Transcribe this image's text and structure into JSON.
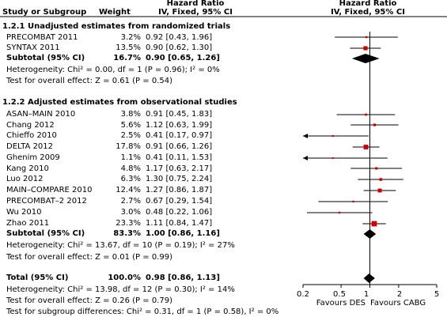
{
  "header": {
    "col_study": "Study or Subgroup",
    "col_weight": "Weight",
    "col_effect_title": "Hazard Ratio",
    "col_effect_sub": "IV, Fixed, 95% CI",
    "plot_title": "Hazard Ratio",
    "plot_sub": "IV, Fixed, 95% CI"
  },
  "groups": [
    {
      "title": "1.2.1 Unadjusted estimates from randomized trials",
      "studies": [
        {
          "name": "PRECOMBAT 2011",
          "weight": "3.2%",
          "ci_text": "0.92 [0.43, 1.96]"
        },
        {
          "name": "SYNTAX 2011",
          "weight": "13.5%",
          "ci_text": "0.90 [0.62, 1.30]"
        }
      ],
      "subtotal": {
        "name": "Subtotal (95% CI)",
        "weight": "16.7%",
        "ci_text": "0.90 [0.65, 1.26]"
      },
      "heterogeneity": "Heterogeneity: Chi² = 0.00, df = 1 (P = 0.96); I² = 0%",
      "overall": "Test for overall effect: Z = 0.61 (P = 0.54)"
    },
    {
      "title": "1.2.2 Adjusted estimates from observational studies",
      "studies": [
        {
          "name": "ASAN–MAIN 2010",
          "weight": "3.8%",
          "ci_text": "0.91 [0.45, 1.83]"
        },
        {
          "name": "Chang 2012",
          "weight": "5.6%",
          "ci_text": "1.12 [0.63, 1.99]"
        },
        {
          "name": "Chieffo 2010",
          "weight": "2.5%",
          "ci_text": "0.41 [0.17, 0.97]"
        },
        {
          "name": "DELTA 2012",
          "weight": "17.8%",
          "ci_text": "0.91 [0.66, 1.26]"
        },
        {
          "name": "Ghenim 2009",
          "weight": "1.1%",
          "ci_text": "0.41 [0.11, 1.53]"
        },
        {
          "name": "Kang 2010",
          "weight": "4.8%",
          "ci_text": "1.17 [0.63, 2.17]"
        },
        {
          "name": "Luo 2012",
          "weight": "6.3%",
          "ci_text": "1.30 [0.75, 2.24]"
        },
        {
          "name": "MAIN–COMPARE 2010",
          "weight": "12.4%",
          "ci_text": "1.27 [0.86, 1.87]"
        },
        {
          "name": "PRECOMBAT–2 2012",
          "weight": "2.7%",
          "ci_text": "0.67 [0.29, 1.54]"
        },
        {
          "name": "Wu 2010",
          "weight": "3.0%",
          "ci_text": "0.48 [0.22, 1.06]"
        },
        {
          "name": "Zhao 2011",
          "weight": "23.3%",
          "ci_text": "1.11 [0.84, 1.47]"
        }
      ],
      "subtotal": {
        "name": "Subtotal (95% CI)",
        "weight": "83.3%",
        "ci_text": "1.00 [0.86, 1.16]"
      },
      "heterogeneity": "Heterogeneity: Chi² = 13.67, df = 10 (P = 0.19); I² = 27%",
      "overall": "Test for overall effect: Z = 0.01 (P = 0.99)"
    }
  ],
  "total": {
    "name": "Total (95% CI)",
    "weight": "100.0%",
    "ci_text": "0.98 [0.86, 1.13]"
  },
  "total_heterogeneity": "Heterogeneity: Chi² = 13.98, df = 12 (P = 0.30); I² = 14%",
  "total_overall": "Test for overall effect: Z = 0.26 (P = 0.79)",
  "subgroup_diff": "Test for subgroup differences: Chi² = 0.31, df = 1 (P = 0.58), I² = 0%",
  "axis": {
    "ticks": [
      0.2,
      0.5,
      1,
      2,
      5
    ],
    "tick_labels": [
      "0.2",
      "0.5",
      "1",
      "2",
      "5"
    ],
    "favours_left": "Favours DES",
    "favours_right": "Favours CABG"
  },
  "colors": {
    "marker": "#cc0000",
    "diamond": "#000000",
    "line": "#000000"
  },
  "chart_data": {
    "type": "forest",
    "scale": "log",
    "xlim": [
      0.2,
      5
    ],
    "reference_line": 1,
    "rows": [
      {
        "label": "PRECOMBAT 2011",
        "hr": 0.92,
        "lo": 0.43,
        "hi": 1.96,
        "weight": 3.2,
        "kind": "study"
      },
      {
        "label": "SYNTAX 2011",
        "hr": 0.9,
        "lo": 0.62,
        "hi": 1.3,
        "weight": 13.5,
        "kind": "study"
      },
      {
        "label": "Subtotal (95% CI)",
        "hr": 0.9,
        "lo": 0.65,
        "hi": 1.26,
        "weight": 16.7,
        "kind": "diamond"
      },
      {
        "label": "ASAN–MAIN 2010",
        "hr": 0.91,
        "lo": 0.45,
        "hi": 1.83,
        "weight": 3.8,
        "kind": "study"
      },
      {
        "label": "Chang 2012",
        "hr": 1.12,
        "lo": 0.63,
        "hi": 1.99,
        "weight": 5.6,
        "kind": "study"
      },
      {
        "label": "Chieffo 2010",
        "hr": 0.41,
        "lo": 0.17,
        "hi": 0.97,
        "weight": 2.5,
        "kind": "study"
      },
      {
        "label": "DELTA 2012",
        "hr": 0.91,
        "lo": 0.66,
        "hi": 1.26,
        "weight": 17.8,
        "kind": "study"
      },
      {
        "label": "Ghenim 2009",
        "hr": 0.41,
        "lo": 0.11,
        "hi": 1.53,
        "weight": 1.1,
        "kind": "study"
      },
      {
        "label": "Kang 2010",
        "hr": 1.17,
        "lo": 0.63,
        "hi": 2.17,
        "weight": 4.8,
        "kind": "study"
      },
      {
        "label": "Luo 2012",
        "hr": 1.3,
        "lo": 0.75,
        "hi": 2.24,
        "weight": 6.3,
        "kind": "study"
      },
      {
        "label": "MAIN–COMPARE 2010",
        "hr": 1.27,
        "lo": 0.86,
        "hi": 1.87,
        "weight": 12.4,
        "kind": "study"
      },
      {
        "label": "PRECOMBAT–2 2012",
        "hr": 0.67,
        "lo": 0.29,
        "hi": 1.54,
        "weight": 2.7,
        "kind": "study"
      },
      {
        "label": "Wu 2010",
        "hr": 0.48,
        "lo": 0.22,
        "hi": 1.06,
        "weight": 3.0,
        "kind": "study"
      },
      {
        "label": "Zhao 2011",
        "hr": 1.11,
        "lo": 0.84,
        "hi": 1.47,
        "weight": 23.3,
        "kind": "study"
      },
      {
        "label": "Subtotal (95% CI)",
        "hr": 1.0,
        "lo": 0.86,
        "hi": 1.16,
        "weight": 83.3,
        "kind": "diamond"
      },
      {
        "label": "Total (95% CI)",
        "hr": 0.98,
        "lo": 0.86,
        "hi": 1.13,
        "weight": 100.0,
        "kind": "diamond"
      }
    ]
  }
}
